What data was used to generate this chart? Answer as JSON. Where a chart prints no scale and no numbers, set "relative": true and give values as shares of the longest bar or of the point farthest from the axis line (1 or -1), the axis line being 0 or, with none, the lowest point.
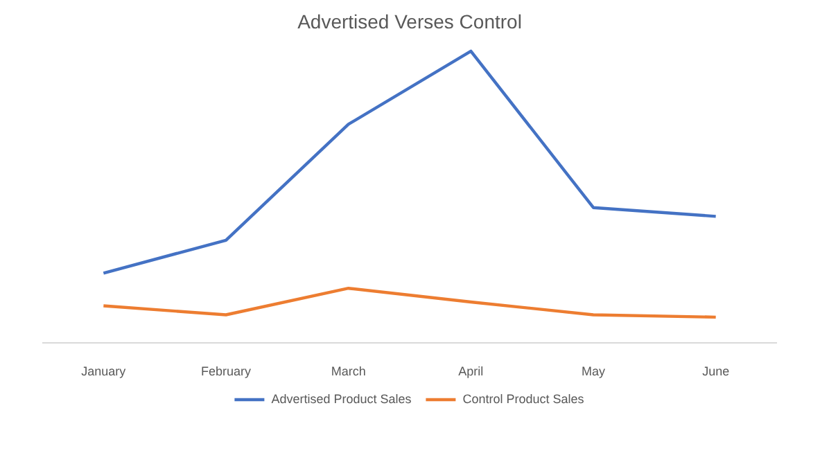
{
  "chart_data": {
    "type": "line",
    "title": "Advertised Verses Control",
    "relative": true,
    "categories": [
      "January",
      "February",
      "March",
      "April",
      "May",
      "June"
    ],
    "series": [
      {
        "name": "Advertised Product Sales",
        "color": "#4472c4",
        "values": [
          0.238,
          0.351,
          0.749,
          1,
          0.463,
          0.433
        ]
      },
      {
        "name": "Control Product Sales",
        "color": "#ed7d31",
        "values": [
          0.126,
          0.095,
          0.186,
          0.139,
          0.095,
          0.087
        ]
      }
    ],
    "legend": "bottom"
  }
}
